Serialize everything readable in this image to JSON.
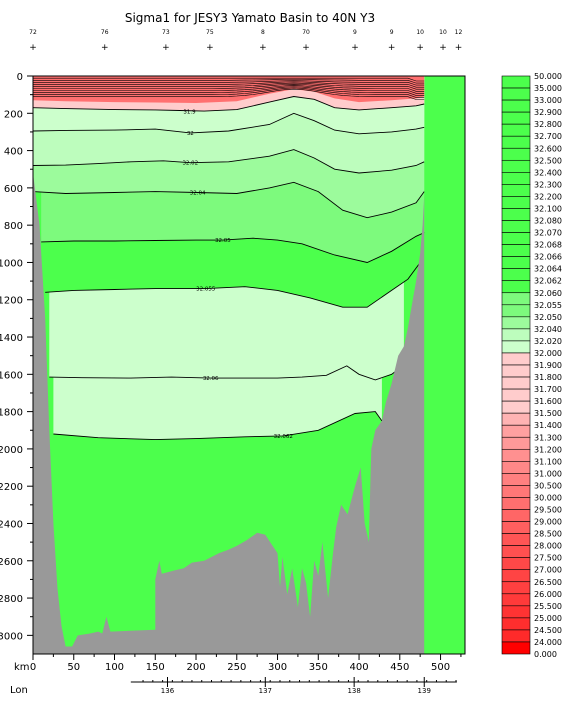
{
  "chart_data": {
    "type": "heatmap",
    "title": "Sigma1 for JESY3 Yamato Basin to 40N Y3",
    "x_axis": {
      "label": "km",
      "range": [
        0,
        530
      ],
      "ticks": [
        0,
        50,
        100,
        150,
        200,
        250,
        300,
        350,
        400,
        450,
        500
      ]
    },
    "y_axis": {
      "range": [
        0,
        3100
      ],
      "reversed": true,
      "ticks": [
        0,
        200,
        400,
        600,
        800,
        1000,
        1200,
        1400,
        1600,
        1800,
        2000,
        2200,
        2400,
        2600,
        2800,
        3000
      ]
    },
    "lon_axis": {
      "label": "Lon",
      "ticks": [
        {
          "label": "136",
          "km": 165
        },
        {
          "label": "137",
          "km": 285
        },
        {
          "label": "138",
          "km": 394
        },
        {
          "label": "139",
          "km": 480
        }
      ]
    },
    "station_labels": [
      {
        "km": 0,
        "label": "72"
      },
      {
        "km": 88,
        "label": "76"
      },
      {
        "km": 163,
        "label": "73"
      },
      {
        "km": 217,
        "label": "75"
      },
      {
        "km": 282,
        "label": "8"
      },
      {
        "km": 335,
        "label": "70"
      },
      {
        "km": 395,
        "label": "9"
      },
      {
        "km": 440,
        "label": "9"
      },
      {
        "km": 475,
        "label": "10"
      },
      {
        "km": 503,
        "label": "10"
      },
      {
        "km": 522,
        "label": "12"
      }
    ],
    "contour_labels": [
      {
        "text": "31.9",
        "km": 192,
        "depth": 190
      },
      {
        "text": "32",
        "km": 193,
        "depth": 305
      },
      {
        "text": "32.02",
        "km": 193,
        "depth": 465
      },
      {
        "text": "32.04",
        "km": 202,
        "depth": 625
      },
      {
        "text": "32.05",
        "km": 233,
        "depth": 880
      },
      {
        "text": "32.055",
        "km": 212,
        "depth": 1140
      },
      {
        "text": "32.06",
        "km": 218,
        "depth": 1620
      },
      {
        "text": "32.062",
        "km": 307,
        "depth": 1930
      }
    ],
    "colorbar": {
      "values": [
        "50.000",
        "35.000",
        "33.000",
        "32.900",
        "32.800",
        "32.700",
        "32.600",
        "32.500",
        "32.400",
        "32.300",
        "32.200",
        "32.100",
        "32.080",
        "32.070",
        "32.068",
        "32.066",
        "32.064",
        "32.062",
        "32.060",
        "32.055",
        "32.050",
        "32.040",
        "32.020",
        "32.000",
        "31.900",
        "31.800",
        "31.700",
        "31.600",
        "31.500",
        "31.400",
        "31.300",
        "31.200",
        "31.100",
        "31.000",
        "30.500",
        "30.000",
        "29.500",
        "29.000",
        "28.500",
        "28.000",
        "27.500",
        "27.000",
        "26.500",
        "26.000",
        "25.500",
        "25.000",
        "24.500",
        "24.000",
        "0.000"
      ],
      "colors": [
        "#4cff4c",
        "#4cff4c",
        "#4cff4c",
        "#4cff4c",
        "#4cff4c",
        "#4cff4c",
        "#4cff4c",
        "#4cff4c",
        "#4cff4c",
        "#4cff4c",
        "#4cff4c",
        "#4cff4c",
        "#4cff4c",
        "#4cff4c",
        "#4cff4c",
        "#4cff4c",
        "#4cff4c",
        "#4cff4c",
        "#7dfa7d",
        "#7dfa7d",
        "#9cfb9c",
        "#bdfdbd",
        "#ccffcc",
        "#ffcccc",
        "#ffcccc",
        "#ffcccc",
        "#ffcccc",
        "#ffcccc",
        "#ffb3b3",
        "#ffa0a0",
        "#ff9999",
        "#ff9090",
        "#ff8888",
        "#ff8080",
        "#ff7777",
        "#ff6f6f",
        "#ff6666",
        "#ff5f5f",
        "#ff5555",
        "#ff5050",
        "#ff4848",
        "#ff4444",
        "#ff4040",
        "#ff3a3a",
        "#ff3333",
        "#ff2e2e",
        "#ff2a2a",
        "#ff0000"
      ]
    },
    "bands": [
      {
        "name": "31.9-32.0",
        "color": "#ffcccc"
      },
      {
        "name": "32.0-32.02",
        "color": "#ccffcc"
      },
      {
        "name": "32.02-32.04",
        "color": "#bdfdbd"
      },
      {
        "name": "32.04-32.05",
        "color": "#9cfb9c"
      },
      {
        "name": "32.05-32.06",
        "color": "#7dfa7d"
      },
      {
        "name": "above 32.06",
        "color": "#4cff4c"
      }
    ],
    "surface_layer_color": "#ff7070",
    "seafloor_color": "#999999",
    "seafloor_profile": [
      [
        0,
        520
      ],
      [
        8,
        800
      ],
      [
        15,
        1300
      ],
      [
        20,
        1900
      ],
      [
        25,
        2400
      ],
      [
        30,
        2750
      ],
      [
        35,
        2950
      ],
      [
        40,
        3060
      ],
      [
        48,
        3060
      ],
      [
        55,
        3000
      ],
      [
        70,
        2990
      ],
      [
        80,
        2980
      ],
      [
        85,
        2990
      ],
      [
        90,
        2900
      ],
      [
        95,
        2980
      ],
      [
        150,
        2970
      ],
      [
        150,
        2700
      ],
      [
        155,
        2600
      ],
      [
        158,
        2670
      ],
      [
        175,
        2650
      ],
      [
        185,
        2640
      ],
      [
        195,
        2610
      ],
      [
        210,
        2600
      ],
      [
        228,
        2560
      ],
      [
        240,
        2540
      ],
      [
        250,
        2520
      ],
      [
        262,
        2490
      ],
      [
        275,
        2450
      ],
      [
        285,
        2460
      ],
      [
        300,
        2560
      ],
      [
        303,
        2740
      ],
      [
        306,
        2580
      ],
      [
        312,
        2780
      ],
      [
        318,
        2640
      ],
      [
        325,
        2850
      ],
      [
        330,
        2640
      ],
      [
        335,
        2720
      ],
      [
        340,
        2900
      ],
      [
        345,
        2600
      ],
      [
        350,
        2680
      ],
      [
        355,
        2500
      ],
      [
        362,
        2800
      ],
      [
        368,
        2560
      ],
      [
        372,
        2420
      ],
      [
        378,
        2300
      ],
      [
        386,
        2350
      ],
      [
        395,
        2200
      ],
      [
        402,
        2100
      ],
      [
        407,
        2400
      ],
      [
        412,
        2500
      ],
      [
        415,
        2000
      ],
      [
        420,
        1900
      ],
      [
        428,
        1850
      ],
      [
        433,
        1750
      ],
      [
        440,
        1650
      ],
      [
        448,
        1500
      ],
      [
        455,
        1450
      ],
      [
        460,
        1350
      ],
      [
        466,
        1200
      ],
      [
        470,
        1100
      ],
      [
        475,
        950
      ],
      [
        478,
        800
      ],
      [
        480,
        640
      ],
      [
        480,
        3100
      ],
      [
        0,
        3100
      ]
    ],
    "contour_lines": [
      {
        "level": "31.9",
        "points": [
          [
            0,
            170
          ],
          [
            40,
            175
          ],
          [
            100,
            180
          ],
          [
            150,
            182
          ],
          [
            180,
            185
          ],
          [
            210,
            188
          ],
          [
            250,
            180
          ],
          [
            290,
            140
          ],
          [
            320,
            110
          ],
          [
            345,
            125
          ],
          [
            370,
            170
          ],
          [
            400,
            182
          ],
          [
            440,
            170
          ],
          [
            470,
            160
          ],
          [
            480,
            150
          ]
        ]
      },
      {
        "level": "32",
        "points": [
          [
            0,
            295
          ],
          [
            40,
            292
          ],
          [
            100,
            290
          ],
          [
            150,
            285
          ],
          [
            193,
            305
          ],
          [
            240,
            295
          ],
          [
            290,
            260
          ],
          [
            320,
            200
          ],
          [
            345,
            240
          ],
          [
            370,
            290
          ],
          [
            400,
            310
          ],
          [
            440,
            300
          ],
          [
            470,
            285
          ],
          [
            480,
            275
          ]
        ]
      },
      {
        "level": "32.02",
        "points": [
          [
            0,
            480
          ],
          [
            40,
            478
          ],
          [
            80,
            470
          ],
          [
            120,
            460
          ],
          [
            160,
            455
          ],
          [
            193,
            465
          ],
          [
            240,
            460
          ],
          [
            290,
            430
          ],
          [
            320,
            395
          ],
          [
            345,
            440
          ],
          [
            370,
            500
          ],
          [
            400,
            520
          ],
          [
            440,
            505
          ],
          [
            470,
            480
          ],
          [
            480,
            460
          ]
        ]
      },
      {
        "level": "32.04",
        "points": [
          [
            0,
            620
          ],
          [
            40,
            630
          ],
          [
            100,
            625
          ],
          [
            150,
            620
          ],
          [
            202,
            625
          ],
          [
            250,
            630
          ],
          [
            290,
            600
          ],
          [
            320,
            570
          ],
          [
            350,
            620
          ],
          [
            380,
            720
          ],
          [
            410,
            760
          ],
          [
            440,
            730
          ],
          [
            470,
            680
          ],
          [
            480,
            620
          ]
        ]
      },
      {
        "level": "32.05",
        "points": [
          [
            10,
            890
          ],
          [
            50,
            885
          ],
          [
            100,
            885
          ],
          [
            150,
            882
          ],
          [
            200,
            880
          ],
          [
            233,
            880
          ],
          [
            270,
            870
          ],
          [
            300,
            880
          ],
          [
            330,
            900
          ],
          [
            370,
            960
          ],
          [
            410,
            1000
          ],
          [
            440,
            940
          ],
          [
            470,
            860
          ],
          [
            480,
            840
          ]
        ]
      },
      {
        "level": "32.055",
        "points": [
          [
            15,
            1160
          ],
          [
            50,
            1150
          ],
          [
            100,
            1145
          ],
          [
            150,
            1140
          ],
          [
            212,
            1140
          ],
          [
            260,
            1130
          ],
          [
            300,
            1150
          ],
          [
            340,
            1190
          ],
          [
            380,
            1240
          ],
          [
            410,
            1240
          ],
          [
            440,
            1150
          ],
          [
            460,
            1090
          ],
          [
            475,
            1000
          ]
        ]
      },
      {
        "level": "32.06",
        "points": [
          [
            20,
            1615
          ],
          [
            60,
            1618
          ],
          [
            120,
            1620
          ],
          [
            170,
            1615
          ],
          [
            218,
            1620
          ],
          [
            260,
            1620
          ],
          [
            300,
            1620
          ],
          [
            330,
            1615
          ],
          [
            360,
            1605
          ],
          [
            385,
            1555
          ],
          [
            400,
            1600
          ],
          [
            420,
            1630
          ],
          [
            440,
            1600
          ],
          [
            455,
            1550
          ]
        ]
      },
      {
        "level": "32.062",
        "points": [
          [
            25,
            1920
          ],
          [
            80,
            1940
          ],
          [
            150,
            1950
          ],
          [
            200,
            1945
          ],
          [
            260,
            1935
          ],
          [
            307,
            1930
          ],
          [
            350,
            1900
          ],
          [
            395,
            1810
          ],
          [
            420,
            1800
          ],
          [
            428,
            1850
          ]
        ]
      }
    ]
  }
}
